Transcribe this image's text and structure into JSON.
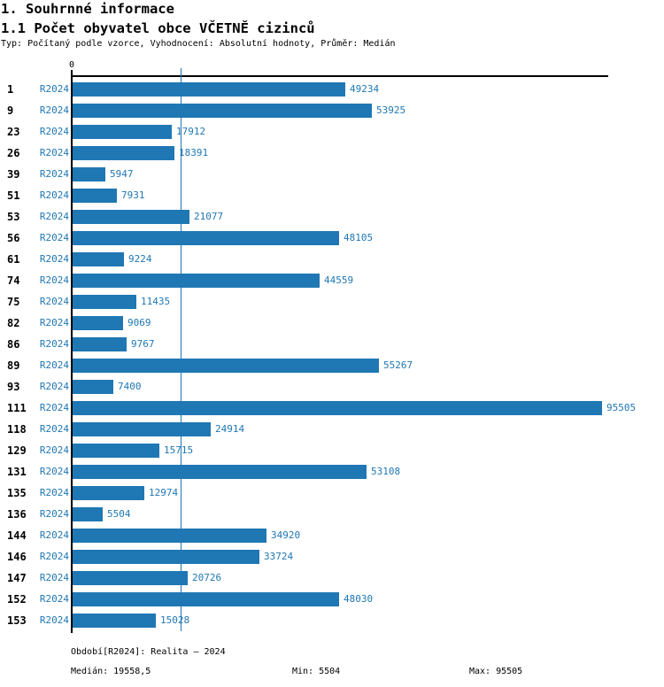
{
  "header": {
    "title1": "1. Souhrnné informace",
    "title2": "1.1 Počet obyvatel obce VČETNĚ cizinců",
    "subtitle": "Typ: Počítaný podle vzorce, Vyhodnocení: Absolutní hodnoty, Průměr: Medián"
  },
  "chart_data": {
    "type": "bar",
    "orientation": "horizontal",
    "title": "1.1 Počet obyvatel obce VČETNĚ cizinců",
    "series_label": "R2024",
    "axis_zero_label": "0",
    "categories": [
      1,
      9,
      23,
      26,
      39,
      51,
      53,
      56,
      61,
      74,
      75,
      82,
      86,
      89,
      93,
      111,
      118,
      129,
      131,
      135,
      136,
      144,
      146,
      147,
      152,
      153
    ],
    "values": [
      49234,
      53925,
      17912,
      18391,
      5947,
      7931,
      21077,
      48105,
      9224,
      44559,
      11435,
      9069,
      9767,
      55267,
      7400,
      95505,
      24914,
      15715,
      53108,
      12974,
      5504,
      34920,
      33724,
      20726,
      48030,
      15028
    ],
    "median": 19558.5,
    "min": 5504,
    "max": 95505,
    "xlim": [
      0,
      96800
    ],
    "grid": false,
    "colors": {
      "bar": "#1f77b4",
      "label_text": "#1f77b4",
      "median_line": "#1f77b4",
      "axis": "#000000"
    }
  },
  "footer": {
    "period": "Období[R2024]: Realita – 2024",
    "median": "Medián: 19558,5",
    "min": "Min: 5504",
    "max": "Max: 95505"
  }
}
